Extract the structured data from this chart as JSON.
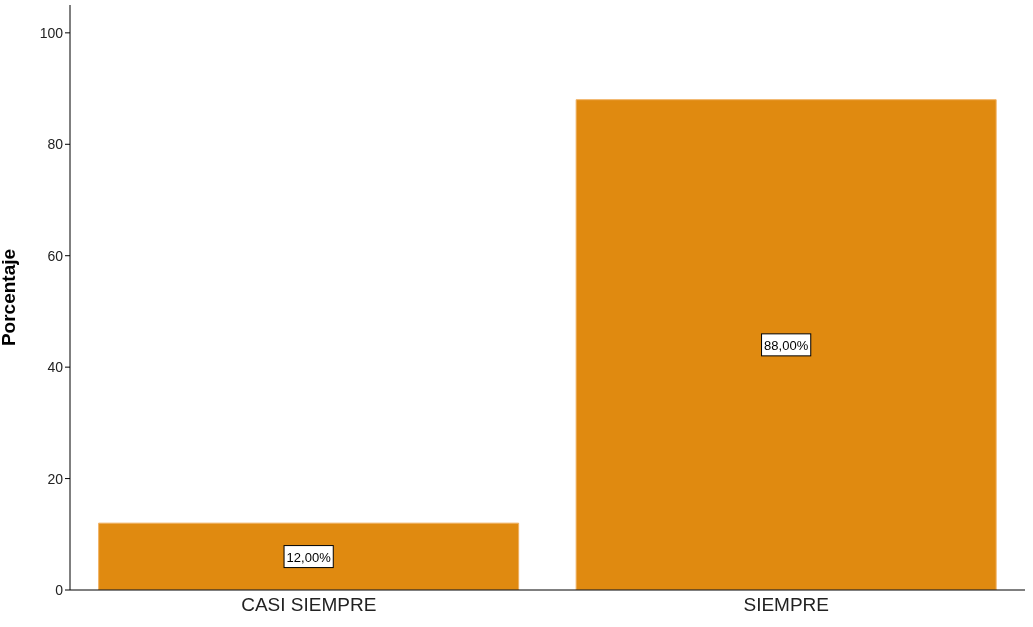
{
  "chart_data": {
    "type": "bar",
    "ylabel": "Porcentaje",
    "categories": [
      "CASI SIEMPRE",
      "SIEMPRE"
    ],
    "values": [
      12,
      88
    ],
    "color": "#e08a10",
    "value_labels": [
      "12,00%",
      "88,00%"
    ],
    "ylim": [
      0,
      105
    ],
    "yticks": [
      0,
      20,
      40,
      60,
      80,
      100
    ],
    "grid": false,
    "legend": false
  }
}
